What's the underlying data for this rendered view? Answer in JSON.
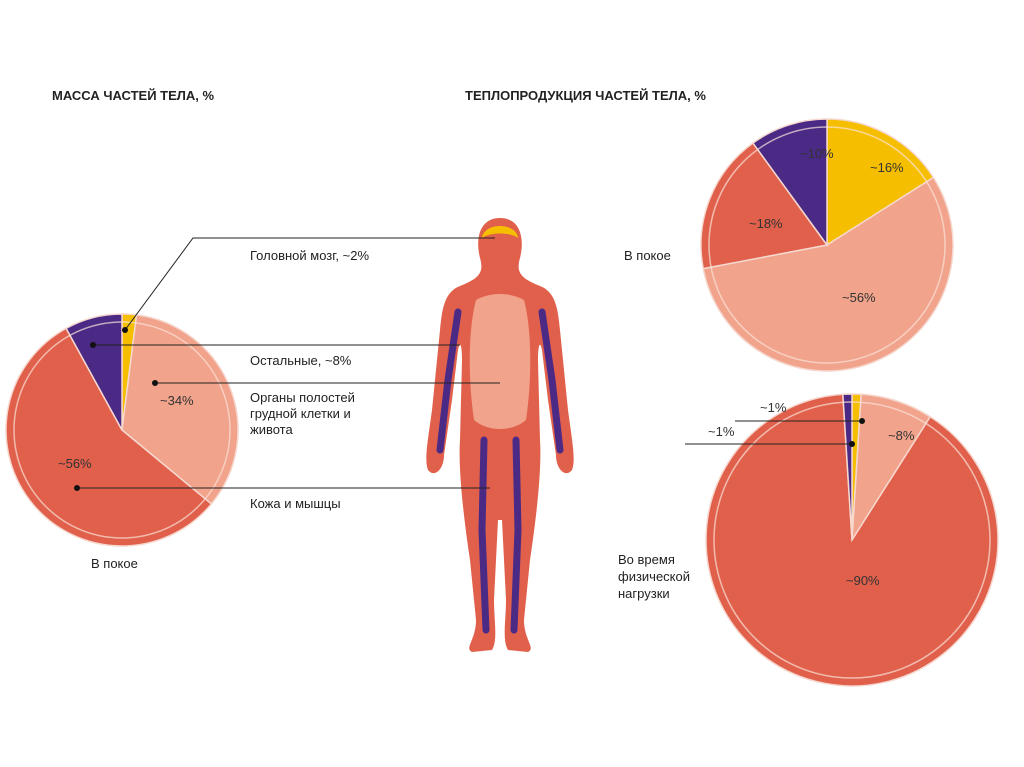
{
  "colors": {
    "brain": "#f5bf00",
    "organs": "#f1a38b",
    "skin_muscles": "#e0604b",
    "others": "#4b2a86"
  },
  "chart_data": [
    {
      "type": "pie",
      "title": "МАССА ЧАСТЕЙ ТЕЛА, %",
      "caption": "В покое",
      "slices": [
        {
          "label": "Головной мозг, ~2%",
          "value": 2,
          "color": "#f5bf00",
          "value_label": ""
        },
        {
          "label": "Органы полостей грудной клетки и живота",
          "value": 34,
          "color": "#f1a38b",
          "value_label": "~34%"
        },
        {
          "label": "Кожа и мышцы",
          "value": 56,
          "color": "#e0604b",
          "value_label": "~56%"
        },
        {
          "label": "Остальные, ~8%",
          "value": 8,
          "color": "#4b2a86",
          "value_label": ""
        }
      ]
    },
    {
      "type": "pie",
      "title": "ТЕПЛОПРОДУКЦИЯ ЧАСТЕЙ ТЕЛА, %",
      "caption": "В покое",
      "slices": [
        {
          "value": 16,
          "color": "#f5bf00",
          "value_label": "~16%"
        },
        {
          "value": 56,
          "color": "#f1a38b",
          "value_label": "~56%"
        },
        {
          "value": 18,
          "color": "#e0604b",
          "value_label": "~18%"
        },
        {
          "value": 10,
          "color": "#4b2a86",
          "value_label": "~10%"
        }
      ]
    },
    {
      "type": "pie",
      "title": "",
      "caption": "Во время физической нагрузки",
      "slices": [
        {
          "value": 1,
          "color": "#f5bf00",
          "value_label": "~1%"
        },
        {
          "value": 8,
          "color": "#f1a38b",
          "value_label": "~8%"
        },
        {
          "value": 90,
          "color": "#e0604b",
          "value_label": "~90%"
        },
        {
          "value": 1,
          "color": "#4b2a86",
          "value_label": "~1%"
        }
      ]
    }
  ],
  "labels": {
    "left_title": "МАССА ЧАСТЕЙ ТЕЛА, %",
    "right_title": "ТЕПЛОПРОДУКЦИЯ ЧАСТЕЙ ТЕЛА, %",
    "brain": "Головной мозг, ~2%",
    "others": "Остальные, ~8%",
    "organs_1": "Органы полостей",
    "organs_2": "грудной клетки и",
    "organs_3": "живота",
    "skin": "Кожа и мышцы",
    "rest_left": "В покое",
    "rest_right": "В покое",
    "exercise_1": "Во время",
    "exercise_2": "физической",
    "exercise_3": "нагрузки"
  }
}
